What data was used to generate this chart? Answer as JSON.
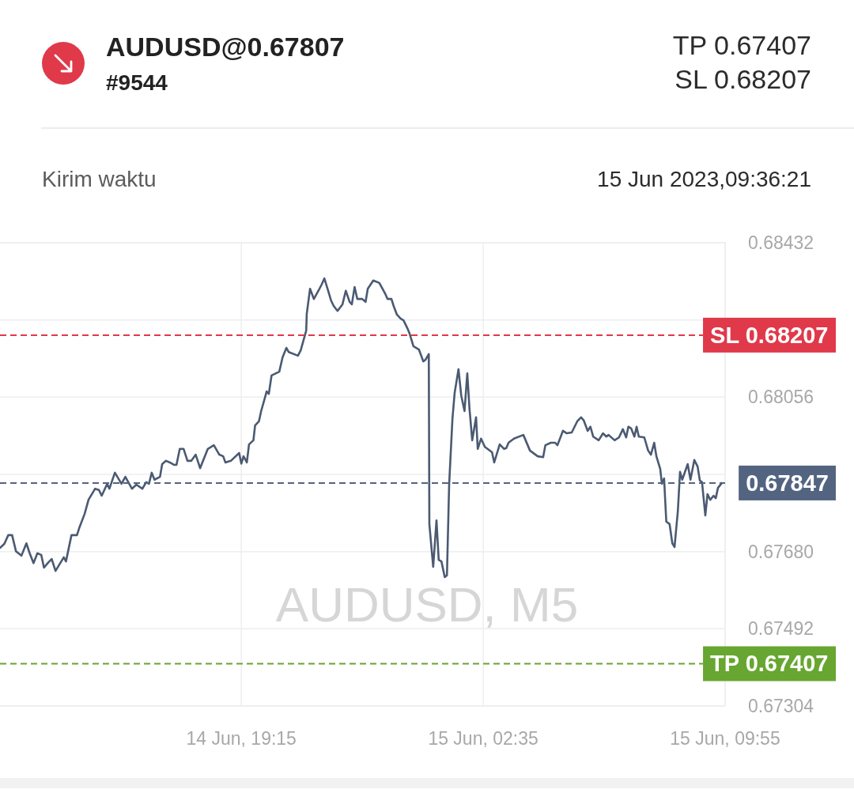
{
  "chart_data": {
    "type": "line",
    "title": "AUDUSD@0.67807",
    "subtitle": "#9544",
    "annotations": [
      "TP 0.67407",
      "SL 0.68207",
      "Kirim waktu",
      "15 Jun 2023,09:36:21",
      "AUDUSD, M5"
    ],
    "x": [
      "2023-06-14T11:56",
      "2023-06-14T12:04",
      "2023-06-14T12:11",
      "2023-06-14T12:18",
      "2023-06-14T12:25",
      "2023-06-14T12:35",
      "2023-06-14T12:44",
      "2023-06-14T12:50",
      "2023-06-14T12:57",
      "2023-06-14T13:04",
      "2023-06-14T13:11",
      "2023-06-14T13:16",
      "2023-06-14T13:23",
      "2023-06-14T13:30",
      "2023-06-14T13:37",
      "2023-06-14T13:52",
      "2023-06-14T13:56",
      "2023-06-14T14:06",
      "2023-06-14T14:16",
      "2023-06-14T14:20",
      "2023-06-14T14:30",
      "2023-06-14T14:37",
      "2023-06-14T14:49",
      "2023-06-14T14:56",
      "2023-06-14T15:01",
      "2023-06-14T15:11",
      "2023-06-14T15:15",
      "2023-06-14T15:25",
      "2023-06-14T15:37",
      "2023-06-14T15:44",
      "2023-06-14T15:56",
      "2023-06-14T16:04",
      "2023-06-14T16:15",
      "2023-06-14T16:22",
      "2023-06-14T16:27",
      "2023-06-14T16:32",
      "2023-06-14T16:37",
      "2023-06-14T16:47",
      "2023-06-14T16:51",
      "2023-06-14T16:58",
      "2023-06-14T17:05",
      "2023-06-14T17:13",
      "2023-06-14T17:17",
      "2023-06-14T17:23",
      "2023-06-14T17:30",
      "2023-06-14T17:37",
      "2023-06-14T17:44",
      "2023-06-14T17:52",
      "2023-06-14T18:00",
      "2023-06-14T18:14",
      "2023-06-14T18:25",
      "2023-06-14T18:35",
      "2023-06-14T18:42",
      "2023-06-14T18:46",
      "2023-06-14T18:56",
      "2023-06-14T19:11",
      "2023-06-14T19:15",
      "2023-06-14T19:19",
      "2023-06-14T19:25",
      "2023-06-14T19:29",
      "2023-06-14T19:37",
      "2023-06-14T19:40",
      "2023-06-14T19:47",
      "2023-06-14T19:51",
      "2023-06-14T19:58",
      "2023-06-14T20:01",
      "2023-06-14T20:05",
      "2023-06-14T20:10",
      "2023-06-14T20:24",
      "2023-06-14T20:30",
      "2023-06-14T20:37",
      "2023-06-14T20:41",
      "2023-06-14T20:58",
      "2023-06-14T21:03",
      "2023-06-14T21:13",
      "2023-06-14T21:14",
      "2023-06-14T21:20",
      "2023-06-14T21:27",
      "2023-06-14T21:36",
      "2023-06-14T21:41",
      "2023-06-14T21:46",
      "2023-06-14T21:53",
      "2023-06-14T21:58",
      "2023-06-14T22:03",
      "2023-06-14T22:10",
      "2023-06-14T22:19",
      "2023-06-14T22:25",
      "2023-06-14T22:32",
      "2023-06-14T22:36",
      "2023-06-14T22:41",
      "2023-06-14T22:46",
      "2023-06-14T22:55",
      "2023-06-14T23:01",
      "2023-06-14T23:05",
      "2023-06-14T23:15",
      "2023-06-14T23:26",
      "2023-06-14T23:37",
      "2023-06-14T23:41",
      "2023-06-14T23:48",
      "2023-06-14T23:52",
      "2023-06-14T23:58",
      "2023-06-15T00:05",
      "2023-06-15T00:10",
      "2023-06-15T00:17",
      "2023-06-15T00:21",
      "2023-06-15T00:28",
      "2023-06-15T00:38",
      "2023-06-15T00:46",
      "2023-06-15T00:50",
      "2023-06-15T00:56",
      "2023-06-15T00:57",
      "2023-06-15T01:04",
      "2023-06-15T01:10",
      "2023-06-15T01:14",
      "2023-06-15T01:19",
      "2023-06-15T01:25",
      "2023-06-15T01:29",
      "2023-06-15T01:33",
      "2023-06-15T01:39",
      "2023-06-15T01:43",
      "2023-06-15T01:50",
      "2023-06-15T01:55",
      "2023-06-15T02:01",
      "2023-06-15T02:06",
      "2023-06-15T02:10",
      "2023-06-15T02:15",
      "2023-06-15T02:22",
      "2023-06-15T02:25",
      "2023-06-15T02:31",
      "2023-06-15T02:38",
      "2023-06-15T02:51",
      "2023-06-15T02:55",
      "2023-06-15T03:05",
      "2023-06-15T03:13",
      "2023-06-15T03:17",
      "2023-06-15T03:21",
      "2023-06-15T03:31",
      "2023-06-15T03:48",
      "2023-06-15T04:00",
      "2023-06-15T04:14",
      "2023-06-15T04:24",
      "2023-06-15T04:28",
      "2023-06-15T04:38",
      "2023-06-15T04:46",
      "2023-06-15T04:50",
      "2023-06-15T05:00",
      "2023-06-15T05:07",
      "2023-06-15T05:16",
      "2023-06-15T05:26",
      "2023-06-15T05:33",
      "2023-06-15T05:38",
      "2023-06-15T05:45",
      "2023-06-15T05:50",
      "2023-06-15T05:55",
      "2023-06-15T06:05",
      "2023-06-15T06:13",
      "2023-06-15T06:19",
      "2023-06-15T06:23",
      "2023-06-15T06:34",
      "2023-06-15T06:42",
      "2023-06-15T06:49",
      "2023-06-15T06:55",
      "2023-06-15T06:59",
      "2023-06-15T07:04",
      "2023-06-15T07:10",
      "2023-06-15T07:14",
      "2023-06-15T07:18",
      "2023-06-15T07:28",
      "2023-06-15T07:35",
      "2023-06-15T07:40",
      "2023-06-15T07:46",
      "2023-06-15T07:50",
      "2023-06-15T07:57",
      "2023-06-15T08:00",
      "2023-06-15T08:04",
      "2023-06-15T08:08",
      "2023-06-15T08:14",
      "2023-06-15T08:19",
      "2023-06-15T08:23",
      "2023-06-15T08:29",
      "2023-06-15T08:33",
      "2023-06-15T08:37",
      "2023-06-15T08:47",
      "2023-06-15T08:52",
      "2023-06-15T08:59",
      "2023-06-15T09:05",
      "2023-06-15T09:09",
      "2023-06-15T09:13",
      "2023-06-15T09:19",
      "2023-06-15T09:23",
      "2023-06-15T09:28",
      "2023-06-15T09:34",
      "2023-06-15T09:38",
      "2023-06-15T09:42",
      "2023-06-15T09:49"
    ],
    "series": [
      {
        "color": "#4b5a72",
        "values": [
          0.67689,
          0.67699,
          0.6772,
          0.6772,
          0.67681,
          0.6767,
          0.677,
          0.67676,
          0.67652,
          0.67676,
          0.67672,
          0.67641,
          0.67652,
          0.67662,
          0.67633,
          0.67666,
          0.67656,
          0.6772,
          0.6772,
          0.67737,
          0.67772,
          0.67806,
          0.67833,
          0.6783,
          0.67816,
          0.67845,
          0.67833,
          0.67872,
          0.67845,
          0.67862,
          0.67833,
          0.67843,
          0.67833,
          0.67849,
          0.67845,
          0.67872,
          0.67855,
          0.67862,
          0.67893,
          0.67901,
          0.67897,
          0.67891,
          0.67891,
          0.6793,
          0.6793,
          0.67901,
          0.67901,
          0.67916,
          0.67883,
          0.6793,
          0.67939,
          0.67916,
          0.67912,
          0.67897,
          0.67901,
          0.6792,
          0.67894,
          0.67912,
          0.67897,
          0.67941,
          0.67951,
          0.67987,
          0.67997,
          0.68022,
          0.68055,
          0.6807,
          0.68064,
          0.68109,
          0.68118,
          0.68153,
          0.68176,
          0.68166,
          0.68157,
          0.6817,
          0.68218,
          0.68259,
          0.6832,
          0.68295,
          0.68317,
          0.6833,
          0.68345,
          0.68315,
          0.68292,
          0.68278,
          0.68266,
          0.68282,
          0.68315,
          0.68288,
          0.68282,
          0.68324,
          0.68295,
          0.68295,
          0.68288,
          0.6832,
          0.6834,
          0.68334,
          0.68307,
          0.68295,
          0.68295,
          0.68278,
          0.68257,
          0.68247,
          0.68243,
          0.68224,
          0.68211,
          0.6818,
          0.68172,
          0.68143,
          0.68147,
          0.68161,
          0.67747,
          0.67643,
          0.67756,
          0.6766,
          0.67656,
          0.67618,
          0.67622,
          0.67843,
          0.68003,
          0.68066,
          0.68124,
          0.6806,
          0.68022,
          0.68114,
          0.68028,
          0.67951,
          0.68007,
          0.6793,
          0.67955,
          0.67935,
          0.67922,
          0.67897,
          0.67941,
          0.6793,
          0.67932,
          0.67945,
          0.67955,
          0.67964,
          0.67926,
          0.67912,
          0.6791,
          0.67939,
          0.67945,
          0.67945,
          0.67939,
          0.67974,
          0.67968,
          0.6797,
          0.67997,
          0.68007,
          0.67999,
          0.67974,
          0.67984,
          0.6796,
          0.67951,
          0.67968,
          0.6796,
          0.67964,
          0.67951,
          0.67958,
          0.67978,
          0.67958,
          0.67984,
          0.6798,
          0.6796,
          0.67984,
          0.6796,
          0.67958,
          0.67926,
          0.67916,
          0.67945,
          0.67912,
          0.67881,
          0.67845,
          0.67858,
          0.67753,
          0.67747,
          0.677,
          0.67691,
          0.67778,
          0.67874,
          0.67855,
          0.67893,
          0.67855,
          0.67903,
          0.67887,
          0.67853,
          0.67849,
          0.67768,
          0.6782,
          0.67806,
          0.67816,
          0.6781,
          0.67835,
          0.67847
        ]
      }
    ],
    "xlim": [
      "2023-06-14T11:56",
      "2023-06-15T09:55"
    ],
    "xticks": [
      {
        "value": "2023-06-14T19:15",
        "label": "14 Jun, 19:15"
      },
      {
        "value": "2023-06-15T02:35",
        "label": "15 Jun, 02:35"
      },
      {
        "value": "2023-06-15T09:55",
        "label": "15 Jun, 09:55"
      }
    ],
    "ylim": [
      0.67304,
      0.68432
    ],
    "yticks": [
      0.68432,
      {
        "value": 0.68244,
        "label": null
      },
      0.68056,
      {
        "value": 0.67868,
        "label": null
      },
      {
        "value": 0.6768,
        "label": "0.67680"
      },
      0.67492,
      0.67304
    ],
    "grid": true,
    "ref_lines": [
      {
        "axis": "y",
        "value": 0.68207,
        "label": "SL 0.68207",
        "color": "#e0394a",
        "line_style": "dashed"
      },
      {
        "axis": "y",
        "value": 0.67847,
        "label": "0.67847",
        "color": "#536481",
        "line_style": "dashed"
      },
      {
        "axis": "y",
        "value": 0.67407,
        "label": "TP 0.67407",
        "color": "#67a630",
        "line_style": "dashed"
      }
    ]
  }
}
